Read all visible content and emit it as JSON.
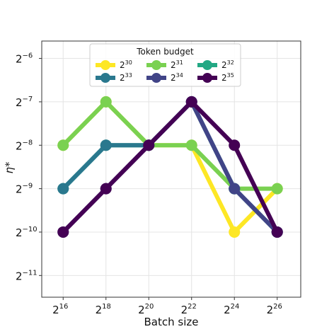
{
  "chart_data": {
    "type": "line",
    "xlabel": "Batch size",
    "ylabel": "η*",
    "x_scale": "log2",
    "y_scale": "log2",
    "x_exponents": [
      16,
      18,
      20,
      22,
      24,
      26
    ],
    "y_exponents": [
      -6,
      -7,
      -8,
      -9,
      -10,
      -11
    ],
    "x_tick_labels": [
      {
        "base": "2",
        "exp": "16"
      },
      {
        "base": "2",
        "exp": "18"
      },
      {
        "base": "2",
        "exp": "20"
      },
      {
        "base": "2",
        "exp": "22"
      },
      {
        "base": "2",
        "exp": "24"
      },
      {
        "base": "2",
        "exp": "26"
      }
    ],
    "y_tick_labels": [
      {
        "base": "2",
        "exp": "−6"
      },
      {
        "base": "2",
        "exp": "−7"
      },
      {
        "base": "2",
        "exp": "−8"
      },
      {
        "base": "2",
        "exp": "−9"
      },
      {
        "base": "2",
        "exp": "−10"
      },
      {
        "base": "2",
        "exp": "−11"
      }
    ],
    "xlim_exp": [
      15.0,
      27.1
    ],
    "ylim_exp": [
      -11.5,
      -5.6
    ],
    "grid": true,
    "legend": {
      "title": "Token budget",
      "placement": "top-center",
      "columns": 3
    },
    "series": [
      {
        "name_base": "2",
        "name_exp": "30",
        "color": "#fde725",
        "x_exp": [
          16,
          18,
          20,
          22,
          24,
          26
        ],
        "y_exp": [
          -8,
          -7,
          -8,
          -8,
          -10,
          -9
        ]
      },
      {
        "name_base": "2",
        "name_exp": "31",
        "color": "#7ad151",
        "x_exp": [
          16,
          18,
          20,
          22,
          24,
          26
        ],
        "y_exp": [
          -8,
          -7,
          -8,
          -8,
          -9,
          -9
        ]
      },
      {
        "name_base": "2",
        "name_exp": "32",
        "color": "#22a884",
        "x_exp": [
          16,
          18,
          20,
          22,
          24,
          26
        ],
        "y_exp": [
          -9,
          -8,
          -8,
          -7,
          -9,
          -10
        ]
      },
      {
        "name_base": "2",
        "name_exp": "33",
        "color": "#2a788e",
        "x_exp": [
          16,
          18,
          20,
          22,
          24,
          26
        ],
        "y_exp": [
          -9,
          -8,
          -8,
          -7,
          -9,
          -10
        ]
      },
      {
        "name_base": "2",
        "name_exp": "34",
        "color": "#414487",
        "x_exp": [
          16,
          18,
          20,
          22,
          24,
          26
        ],
        "y_exp": [
          -10,
          -9,
          -8,
          -7,
          -9,
          -10
        ]
      },
      {
        "name_base": "2",
        "name_exp": "35",
        "color": "#440154",
        "x_exp": [
          16,
          18,
          20,
          22,
          24,
          26
        ],
        "y_exp": [
          -10,
          -9,
          -8,
          -7,
          -8,
          -10
        ]
      }
    ]
  }
}
